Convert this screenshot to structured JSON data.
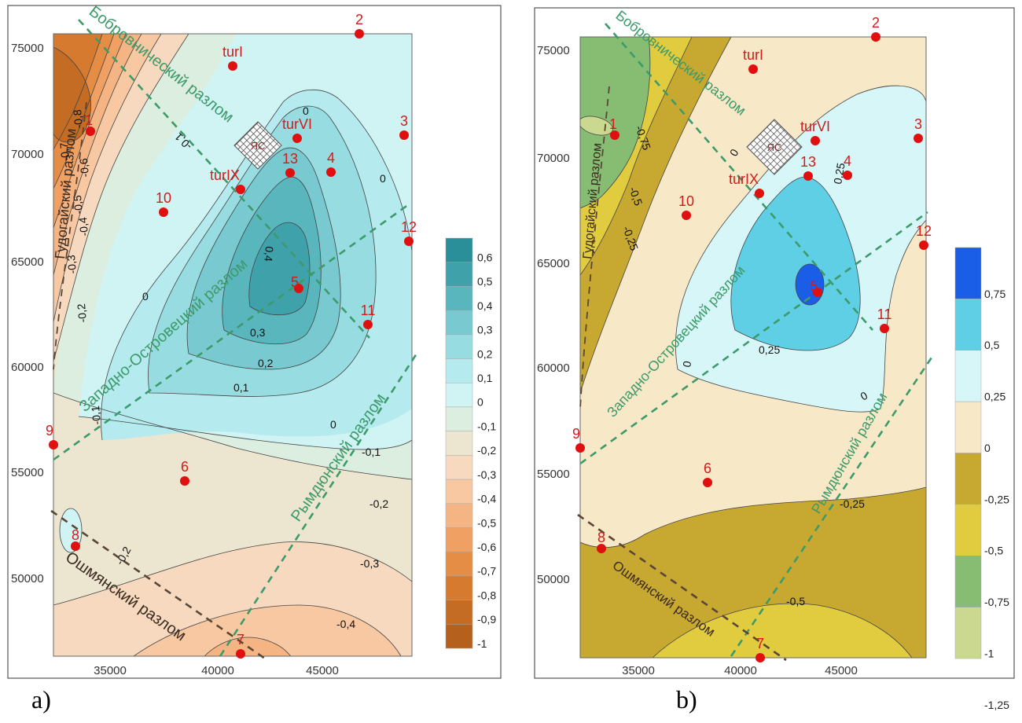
{
  "panels": [
    {
      "label": "a)",
      "x_ticks": [
        "35000",
        "40000",
        "45000"
      ],
      "y_ticks": [
        "75000",
        "70000",
        "65000",
        "60000",
        "55000",
        "50000"
      ],
      "colorbar": {
        "labels": [
          "0,6",
          "0,5",
          "0,4",
          "0,3",
          "0,2",
          "0,1",
          "0",
          "-0,1",
          "-0,2",
          "-0,3",
          "-0,4",
          "-0,5",
          "-0,6",
          "-0,7",
          "-0,8",
          "-0,9",
          "-1"
        ],
        "colors": [
          "#2a8f98",
          "#3fa2aa",
          "#5ab6bd",
          "#78cad0",
          "#97dce0",
          "#b5ebee",
          "#d0f3f3",
          "#dbeee0",
          "#ece5cf",
          "#f6d9bf",
          "#f7c8a2",
          "#f5b483",
          "#f0a062",
          "#e58c45",
          "#d67a30",
          "#c46c24",
          "#b5611d"
        ]
      },
      "contour_labels": [
        "0",
        "-0,1",
        "0",
        "0,4",
        "0,3",
        "0,2",
        "0,1",
        "0",
        "0",
        "-0,1",
        "-0,2",
        "-0,3",
        "-0,4",
        "-0,2",
        "-0,8",
        "-0,6",
        "-0,5",
        "-0,4",
        "-0,3",
        "-0,2",
        "-0,1",
        "-0,7"
      ],
      "wells": [
        "1",
        "2",
        "3",
        "4",
        "5",
        "6",
        "7",
        "8",
        "9",
        "10",
        "11",
        "12",
        "13",
        "turI",
        "turVI",
        "turIX"
      ],
      "facility": "ЯС",
      "faults": {
        "bobrovnichesky": "Бобровнический разлом",
        "zapadno_ostrovetsky": "Западно-Островецкий разлом",
        "rymdyunsky": "Рымдюнский разлом",
        "oshmyansky": "Ошмянский разлом",
        "gudogaysky": "Гудогайский разлом"
      }
    },
    {
      "label": "b)",
      "x_ticks": [
        "35000",
        "40000",
        "45000"
      ],
      "y_ticks": [
        "75000",
        "70000",
        "65000",
        "60000",
        "55000",
        "50000"
      ],
      "colorbar": {
        "labels": [
          "0,75",
          "0,5",
          "0,25",
          "0",
          "-0,25",
          "-0,5",
          "-0,75",
          "-1",
          "-1,25"
        ],
        "colors": [
          "#1a5ee8",
          "#5fcfe6",
          "#d7f6f8",
          "#f7e8c8",
          "#c7a830",
          "#e0cc3e",
          "#86bd73",
          "#cad98f"
        ]
      },
      "contour_labels": [
        "-0,75",
        "-0,5",
        "-0,25",
        "0",
        "0,25",
        "0,25",
        "0",
        "0",
        "-0,25",
        "-0,5"
      ],
      "wells": [
        "1",
        "2",
        "3",
        "4",
        "5",
        "6",
        "7",
        "8",
        "9",
        "10",
        "11",
        "12",
        "13",
        "turI",
        "turVI",
        "turIX"
      ],
      "facility": "ЯС",
      "faults": {
        "bobrovnichesky": "Бобровнический разлом",
        "zapadno_ostrovetsky": "Западно-Островецкий разлом",
        "rymdyunsky": "Рымдюнский разлом",
        "oshmyansky": "Ошмянский разлом",
        "gudogaysky": "Гудогайский разлом"
      }
    }
  ]
}
